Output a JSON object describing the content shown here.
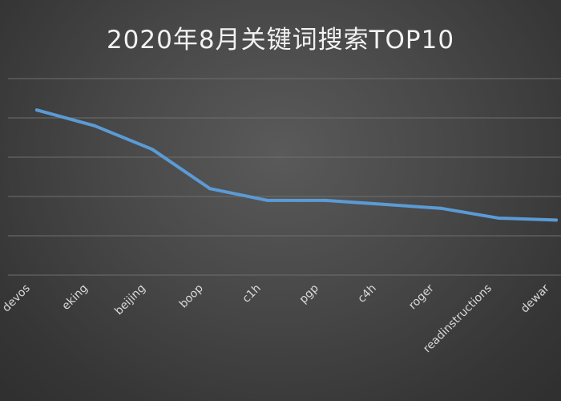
{
  "chart_data": {
    "type": "line",
    "title": "2020年8月关键词搜索TOP10",
    "xlabel": "",
    "ylabel": "",
    "categories": [
      "devos",
      "eking",
      "beijing",
      "boop",
      "c1h",
      "pgp",
      "c4h",
      "roger",
      "readinstructions",
      "dewar"
    ],
    "series": [
      {
        "values": [
          4.2,
          3.8,
          3.2,
          2.2,
          1.9,
          1.9,
          1.8,
          1.7,
          1.45,
          1.4
        ],
        "color": "#5b9bd5"
      }
    ],
    "ylim": [
      0,
      5
    ],
    "y_ticks": [
      0,
      1,
      2,
      3,
      4,
      5
    ],
    "y_tick_labels_visible": false,
    "grid": true,
    "legend": "none"
  }
}
